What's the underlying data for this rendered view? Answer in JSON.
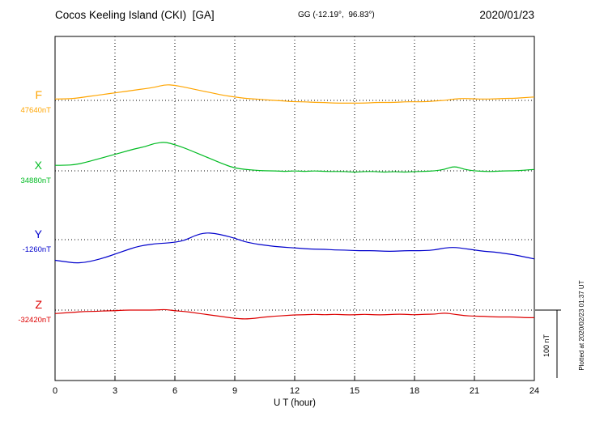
{
  "header": {
    "station_title": "Cocos Keeling Island (CKI)  [GA]",
    "coords": "GG (-12.19°,  96.83°)",
    "date": "2020/01/23"
  },
  "footer": {
    "xlabel": "U T (hour)",
    "plotted_note": "Plotted at 2020/02/23 01:37 UT"
  },
  "chart_data": {
    "type": "line",
    "title": "Cocos Keeling Island (CKI) [GA] magnetogram",
    "xlabel": "U T (hour)",
    "x_range": [
      0,
      24
    ],
    "x_ticks": [
      0,
      3,
      6,
      9,
      12,
      15,
      18,
      21,
      24
    ],
    "x_step_hours": 0.5,
    "grid": "dotted vertical lines every 3 hours; dotted horizontal baseline per component",
    "scale_bar_label": "100 nT",
    "scale_bar_nT": 100,
    "series": [
      {
        "name": "F",
        "color": "#FFA500",
        "baseline_label": "47640nT",
        "baseline_value_nT": 47640,
        "offsets_nT": [
          2,
          2,
          3,
          5,
          7,
          9,
          11,
          13,
          15,
          17,
          19,
          23,
          22,
          19,
          16,
          13,
          10,
          7,
          5,
          3,
          2,
          1,
          0,
          -1,
          -2,
          -2,
          -3,
          -3,
          -4,
          -4,
          -4,
          -4,
          -3,
          -3,
          -3,
          -2,
          -2,
          -2,
          -1,
          0,
          2,
          3,
          2,
          2,
          2,
          3,
          3,
          4,
          5
        ]
      },
      {
        "name": "X",
        "color": "#00BB22",
        "baseline_label": "34880nT",
        "baseline_value_nT": 34880,
        "offsets_nT": [
          8,
          8,
          9,
          12,
          16,
          20,
          24,
          28,
          32,
          35,
          40,
          42,
          38,
          33,
          27,
          21,
          15,
          9,
          4,
          2,
          1,
          0,
          0,
          -1,
          0,
          -1,
          0,
          -1,
          -1,
          -1,
          -2,
          -1,
          -1,
          -2,
          -1,
          -2,
          -1,
          -1,
          0,
          2,
          7,
          2,
          0,
          -1,
          -1,
          0,
          0,
          1,
          2
        ]
      },
      {
        "name": "Y",
        "color": "#0000CC",
        "baseline_label": "-1260nT",
        "baseline_value_nT": -1260,
        "offsets_nT": [
          -30,
          -32,
          -34,
          -33,
          -30,
          -26,
          -21,
          -16,
          -11,
          -8,
          -6,
          -5,
          -4,
          -1,
          6,
          10,
          9,
          6,
          2,
          -3,
          -6,
          -8,
          -10,
          -11,
          -12,
          -13,
          -14,
          -14,
          -15,
          -15,
          -16,
          -16,
          -16,
          -17,
          -17,
          -16,
          -16,
          -16,
          -15,
          -12,
          -11,
          -13,
          -15,
          -17,
          -18,
          -20,
          -22,
          -25,
          -28
        ]
      },
      {
        "name": "Z",
        "color": "#DD0000",
        "baseline_label": "-32420nT",
        "baseline_value_nT": -32420,
        "offsets_nT": [
          -5,
          -4,
          -3,
          -2,
          -2,
          -1,
          -1,
          0,
          0,
          0,
          0,
          1,
          -1,
          -2,
          -4,
          -6,
          -8,
          -10,
          -12,
          -13,
          -12,
          -10,
          -9,
          -8,
          -7,
          -7,
          -6,
          -7,
          -6,
          -7,
          -7,
          -6,
          -7,
          -7,
          -6,
          -6,
          -7,
          -6,
          -6,
          -4,
          -6,
          -8,
          -9,
          -9,
          -10,
          -10,
          -10,
          -11,
          -11
        ]
      }
    ]
  }
}
